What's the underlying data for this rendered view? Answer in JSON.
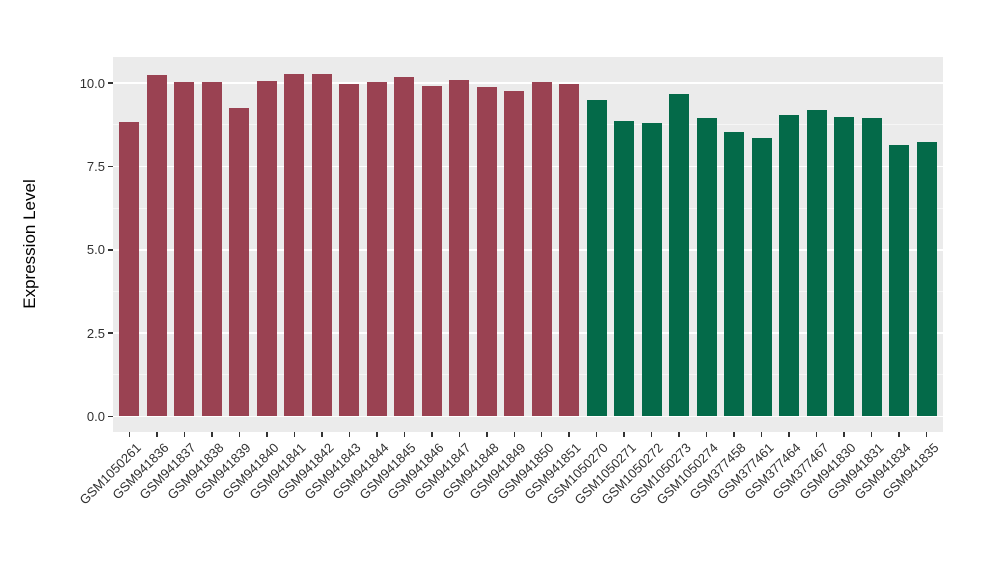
{
  "chart_data": {
    "type": "bar",
    "title": "",
    "xlabel": "",
    "ylabel": "Expression Level",
    "ylim": [
      0,
      10.8
    ],
    "yticks": [
      0,
      2.5,
      5,
      7.5,
      10
    ],
    "ytick_labels": [
      "0.0",
      "2.5",
      "5.0",
      "7.5",
      "10.0"
    ],
    "minor_yticks": [
      1.25,
      3.75,
      6.25,
      8.75
    ],
    "grid": true,
    "legend_position": "none",
    "panel_background": "#EBEBEB",
    "grid_color": "#FFFFFF",
    "categories": [
      "GSM1050261",
      "GSM941836",
      "GSM941837",
      "GSM941838",
      "GSM941839",
      "GSM941840",
      "GSM941841",
      "GSM941842",
      "GSM941843",
      "GSM941844",
      "GSM941845",
      "GSM941846",
      "GSM941847",
      "GSM941848",
      "GSM941849",
      "GSM941850",
      "GSM941851",
      "GSM1050270",
      "GSM1050271",
      "GSM1050272",
      "GSM1050273",
      "GSM1050274",
      "GSM377458",
      "GSM377461",
      "GSM377464",
      "GSM377467",
      "GSM941830",
      "GSM941831",
      "GSM941834",
      "GSM941835"
    ],
    "values": [
      8.82,
      10.25,
      10.04,
      10.02,
      9.25,
      10.05,
      10.27,
      10.26,
      9.98,
      10.03,
      10.19,
      9.92,
      10.08,
      9.87,
      9.77,
      10.02,
      9.96,
      9.48,
      8.86,
      8.79,
      9.68,
      8.95,
      8.52,
      8.36,
      9.03,
      9.2,
      8.97,
      8.94,
      8.15,
      8.22
    ],
    "bar_groups": [
      "group1",
      "group1",
      "group1",
      "group1",
      "group1",
      "group1",
      "group1",
      "group1",
      "group1",
      "group1",
      "group1",
      "group1",
      "group1",
      "group1",
      "group1",
      "group1",
      "group1",
      "group2",
      "group2",
      "group2",
      "group2",
      "group2",
      "group2",
      "group2",
      "group2",
      "group2",
      "group2",
      "group2",
      "group2",
      "group2"
    ],
    "group_colors": {
      "group1": "#9A4252",
      "group2": "#046A49"
    }
  }
}
